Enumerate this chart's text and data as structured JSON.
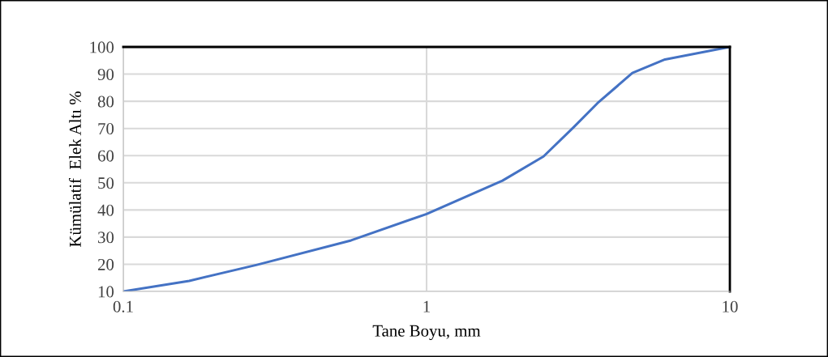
{
  "chart_data": {
    "type": "line",
    "xlabel": "Tane Boyu, mm",
    "ylabel": "Kümülatif  Elek Altı %",
    "series": [
      {
        "color": "#4472c4",
        "x": [
          0.1,
          0.165,
          0.276,
          0.564,
          1,
          1.78,
          2.43,
          3.05,
          3.66,
          4.77,
          6.11,
          10
        ],
        "values": [
          10,
          13.9,
          19.8,
          28.8,
          38.5,
          50.8,
          59.7,
          70.4,
          79.3,
          90.4,
          95.4,
          100
        ]
      }
    ],
    "log": "x",
    "xlim": [
      0.1,
      10
    ],
    "xticks": [
      0.1,
      1,
      10
    ],
    "ylim": [
      10,
      100
    ],
    "yticks": [
      10,
      20,
      30,
      40,
      50,
      60,
      70,
      80,
      90,
      100
    ],
    "grid": true,
    "marker": "none",
    "line_style": "solid"
  }
}
